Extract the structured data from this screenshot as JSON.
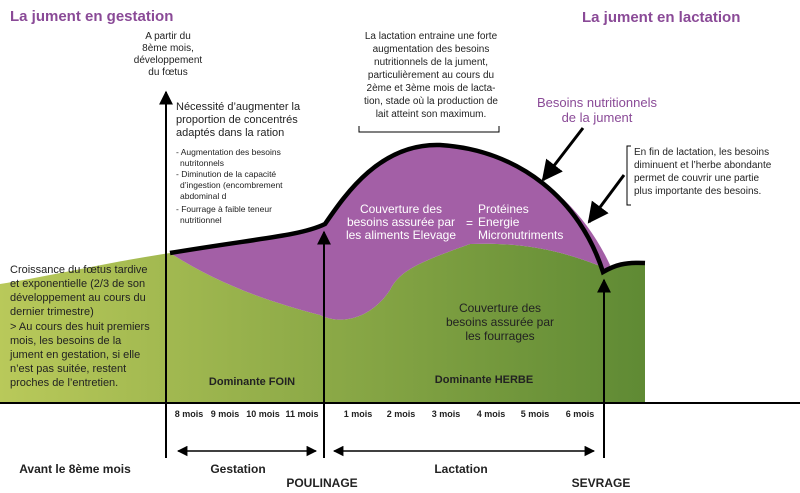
{
  "titles": {
    "left": "La jument en gestation",
    "right": "La jument en lactation"
  },
  "annotations": {
    "foetus": [
      "A partir du",
      "8ème mois,",
      "développement",
      "du fœtus"
    ],
    "concentres": [
      "Nécessité d’augmenter la",
      "proportion de concentrés",
      "adaptés  dans la ration"
    ],
    "concentres_list": [
      "- Augmentation des besoins",
      "nutritonnels",
      "- Diminution de la capacité",
      "d’ingestion (encombrement",
      "abdominal d",
      "- Fourrage à faible teneur",
      "nutritionnel"
    ],
    "lactation": [
      "La lactation entraine une forte",
      "augmentation des besoins",
      "nutritionnels de la jument,",
      "particulièrement au cours du",
      "2ème et 3ème mois de lacta-",
      "tion, stade où la production de",
      "lait atteint son maximum."
    ],
    "besoins": [
      "Besoins nutritionnels",
      "de la jument"
    ],
    "fin_lactation": [
      "En fin de lactation, les besoins",
      "diminuent et l’herbe abondante",
      "permet de couvrir une partie",
      "plus importante des besoins."
    ],
    "croissance": [
      "Croissance du fœtus tardive",
      "et exponentielle (2/3 de son",
      "développement au cours du",
      "dernier trimestre)",
      "> Au cours des huit premiers",
      "mois, les besoins de la",
      "jument en gestation, si elle",
      "n’est pas suitée, restent",
      "proches de l’entretien."
    ]
  },
  "areas": {
    "aliments": [
      "Couverture des",
      "besoins assurée par",
      "les aliments Elevage"
    ],
    "equals": "=",
    "nutrients": [
      "Protéines",
      "Energie",
      "Micronutriments"
    ],
    "fourrages": [
      "Couverture des",
      "besoins assurée par",
      "les fourrages"
    ],
    "foin": "Dominante FOIN",
    "herbe": "Dominante HERBE"
  },
  "axis": {
    "ticks_gestation": [
      "8 mois",
      "9 mois",
      "10 mois",
      "11 mois"
    ],
    "ticks_lactation": [
      "1 mois",
      "2 mois",
      "3 mois",
      "4 mois",
      "5 mois",
      "6 mois"
    ]
  },
  "phases": {
    "avant": "Avant le 8ème mois",
    "gestation": "Gestation",
    "poulinage": "POULINAGE",
    "lactation": "Lactation",
    "sevrage": "SEVRAGE"
  },
  "colors": {
    "purple": "#a35fa6",
    "green_light": "#b7c657",
    "green_dark": "#6b8f3a",
    "title": "#8a4a97"
  }
}
